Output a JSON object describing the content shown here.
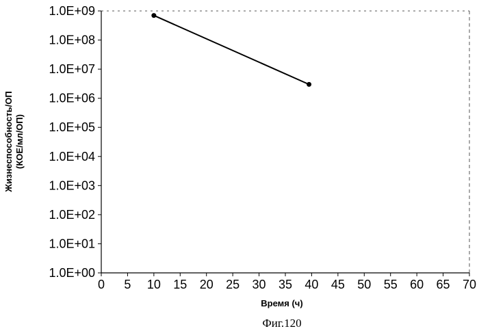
{
  "chart_data": {
    "type": "line",
    "title": "",
    "xlabel": "Время (ч)",
    "ylabel": [
      "Жизнеспособность/ОП",
      "(КОЕ/мл/ОП)"
    ],
    "x_scale": "linear",
    "y_scale": "log",
    "xlim": [
      0,
      70
    ],
    "ylim": [
      1,
      1000000000
    ],
    "x_ticks": [
      "0",
      "5",
      "10",
      "15",
      "20",
      "25",
      "30",
      "35",
      "40",
      "45",
      "50",
      "55",
      "60",
      "65",
      "70"
    ],
    "y_ticks": [
      "1.0E+00",
      "1.0E+01",
      "1.0E+02",
      "1.0E+03",
      "1.0E+04",
      "1.0E+05",
      "1.0E+06",
      "1.0E+07",
      "1.0E+08",
      "1.0E+09"
    ],
    "grid": false,
    "legend": "none",
    "series": [
      {
        "x": [
          10,
          39.5
        ],
        "y": [
          700000000,
          3000000
        ],
        "color": "#000000",
        "marker": "circle"
      }
    ]
  },
  "caption": "Фиг.120"
}
